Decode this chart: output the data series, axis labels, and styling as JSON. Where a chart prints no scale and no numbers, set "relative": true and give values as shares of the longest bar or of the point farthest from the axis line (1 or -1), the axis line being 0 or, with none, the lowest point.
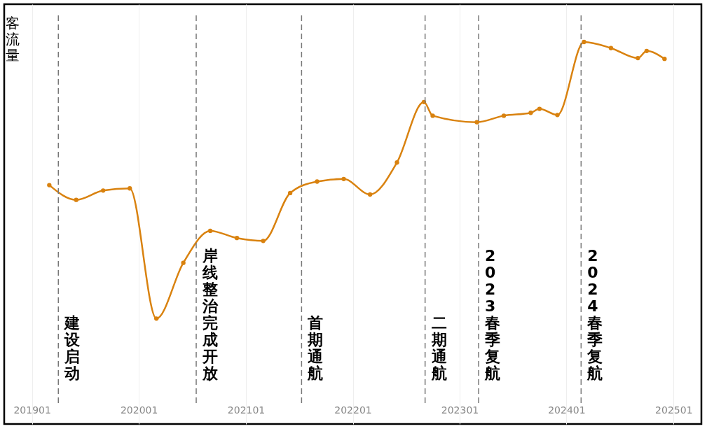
{
  "chart_data": {
    "type": "line",
    "relative": true,
    "ylabel": "客流量",
    "x": [
      "2019-03",
      "2019-06",
      "2019-09",
      "2019-12",
      "2020-03",
      "2020-06",
      "2020-09",
      "2020-12",
      "2021-03",
      "2021-06",
      "2021-09",
      "2021-12",
      "2022-03",
      "2022-06",
      "2022-09",
      "2022-10",
      "2023-03",
      "2023-06",
      "2023-09",
      "2023-10",
      "2023-12",
      "2024-03",
      "2024-06",
      "2024-09",
      "2024-10",
      "2024-12"
    ],
    "series": [
      {
        "color": "#d9820f",
        "values": [
          0.602,
          0.561,
          0.587,
          0.593,
          0.231,
          0.386,
          0.475,
          0.455,
          0.447,
          0.58,
          0.612,
          0.619,
          0.576,
          0.665,
          0.833,
          0.795,
          0.777,
          0.795,
          0.803,
          0.814,
          0.797,
          1,
          0.983,
          0.955,
          0.975,
          0.953
        ]
      }
    ],
    "xlim": [
      "2018-09-28",
      "2025-04-06"
    ],
    "xticks": [
      {
        "value": "2019-01",
        "label": "201901"
      },
      {
        "value": "2020-01",
        "label": "202001"
      },
      {
        "value": "2021-01",
        "label": "202101"
      },
      {
        "value": "2022-01",
        "label": "202201"
      },
      {
        "value": "2023-01",
        "label": "202301"
      },
      {
        "value": "2024-01",
        "label": "202401"
      },
      {
        "value": "2025-01",
        "label": "202501"
      }
    ],
    "grid": "x",
    "marker": "circle",
    "line_style": "solid",
    "ref_lines": [
      {
        "axis": "x",
        "value": "2019-04-01",
        "label": "建设启动",
        "color": "#777777",
        "line_style": "dashed"
      },
      {
        "axis": "x",
        "value": "2020-07-15",
        "label": "岸线整治完成开放",
        "color": "#777777",
        "line_style": "dashed"
      },
      {
        "axis": "x",
        "value": "2021-07-10",
        "label": "首期通航",
        "color": "#777777",
        "line_style": "dashed"
      },
      {
        "axis": "x",
        "value": "2022-09-05",
        "label": "二期通航",
        "color": "#777777",
        "line_style": "dashed"
      },
      {
        "axis": "x",
        "value": "2023-03-07",
        "label": "2023春季复航",
        "color": "#777777",
        "line_style": "dashed"
      },
      {
        "axis": "x",
        "value": "2024-02-20",
        "label": "2024春季复航",
        "color": "#777777",
        "line_style": "dashed"
      }
    ]
  }
}
